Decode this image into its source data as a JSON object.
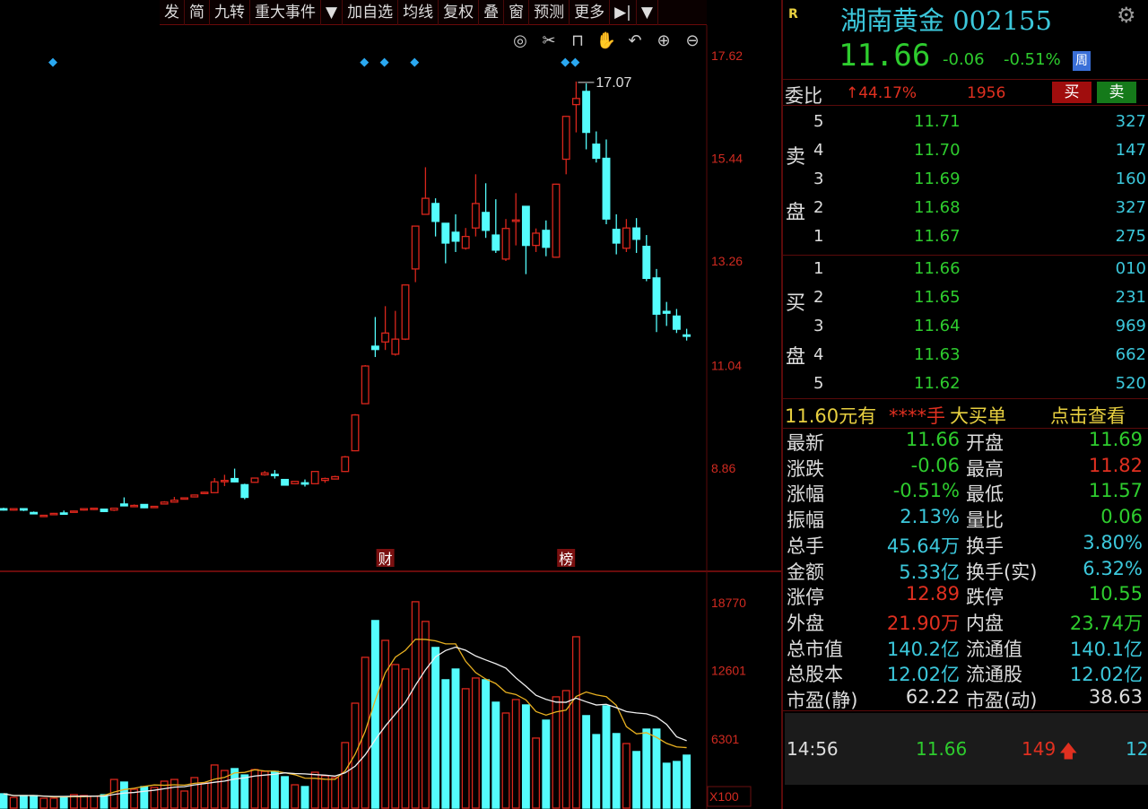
{
  "toolbar": {
    "items": [
      "发",
      "简",
      "九转",
      "重大事件",
      "▼",
      "加自选",
      "均线",
      "复权",
      "叠",
      "窗",
      "预测",
      "更多",
      "▶|",
      "▼"
    ]
  },
  "chart_icons": [
    "eye-icon",
    "scissors-icon",
    "lock-icon",
    "hand-icon",
    "undo-icon",
    "zoom-in-icon",
    "zoom-out-icon"
  ],
  "chart_data": [
    {
      "type": "candlestick",
      "title": "",
      "price_axis_ticks": [
        17.62,
        15.44,
        13.26,
        11.04,
        8.86
      ],
      "high_label": "17.07",
      "colors": {
        "up": "#d9261c",
        "down": "#54fcfc",
        "axis": "#d02a20"
      },
      "event_markers": [
        {
          "index": 5,
          "symbol": "◆"
        },
        {
          "index": 36,
          "symbol": "◆"
        },
        {
          "index": 38,
          "symbol": "◆"
        },
        {
          "index": 41,
          "symbol": "◆"
        },
        {
          "index": 56,
          "symbol": "◆"
        },
        {
          "index": 57,
          "symbol": "◆"
        }
      ],
      "bottom_tags": [
        {
          "index": 38,
          "text": "财"
        },
        {
          "index": 56,
          "text": "榜"
        }
      ],
      "ohlc": [
        [
          8.0,
          8.02,
          7.96,
          7.98
        ],
        [
          7.97,
          8.01,
          7.96,
          8.0
        ],
        [
          8.0,
          8.0,
          7.95,
          7.97
        ],
        [
          7.92,
          7.94,
          7.88,
          7.89
        ],
        [
          7.85,
          7.87,
          7.84,
          7.86
        ],
        [
          7.88,
          7.91,
          7.87,
          7.9
        ],
        [
          7.91,
          7.96,
          7.89,
          7.9
        ],
        [
          7.93,
          7.96,
          7.92,
          7.95
        ],
        [
          7.98,
          8.01,
          7.96,
          8.0
        ],
        [
          7.99,
          8.02,
          7.97,
          8.01
        ],
        [
          7.99,
          7.99,
          7.93,
          7.94
        ],
        [
          7.97,
          8.02,
          7.95,
          8.01
        ],
        [
          8.1,
          8.24,
          8.05,
          8.06
        ],
        [
          8.06,
          8.09,
          8.05,
          8.07
        ],
        [
          8.09,
          8.09,
          8.01,
          8.02
        ],
        [
          8.03,
          8.06,
          8.02,
          8.05
        ],
        [
          8.1,
          8.16,
          8.09,
          8.14
        ],
        [
          8.14,
          8.25,
          8.13,
          8.18
        ],
        [
          8.21,
          8.24,
          8.2,
          8.23
        ],
        [
          8.25,
          8.3,
          8.24,
          8.29
        ],
        [
          8.32,
          8.36,
          8.31,
          8.35
        ],
        [
          8.34,
          8.65,
          8.33,
          8.57
        ],
        [
          8.58,
          8.72,
          8.48,
          8.6
        ],
        [
          8.64,
          8.85,
          8.56,
          8.57
        ],
        [
          8.51,
          8.53,
          8.2,
          8.24
        ],
        [
          8.56,
          8.66,
          8.55,
          8.65
        ],
        [
          8.72,
          8.8,
          8.7,
          8.76
        ],
        [
          8.73,
          8.82,
          8.64,
          8.71
        ],
        [
          8.62,
          8.63,
          8.49,
          8.5
        ],
        [
          8.53,
          8.59,
          8.52,
          8.58
        ],
        [
          8.55,
          8.62,
          8.47,
          8.53
        ],
        [
          8.53,
          8.8,
          8.52,
          8.79
        ],
        [
          8.6,
          8.66,
          8.55,
          8.64
        ],
        [
          8.63,
          8.7,
          8.62,
          8.68
        ],
        [
          8.79,
          9.12,
          8.78,
          9.1
        ],
        [
          9.23,
          10.01,
          9.22,
          9.99
        ],
        [
          10.23,
          11.05,
          10.22,
          11.03
        ],
        [
          11.45,
          12.07,
          11.22,
          11.38
        ],
        [
          11.54,
          12.3,
          11.37,
          11.73
        ],
        [
          11.28,
          12.2,
          11.25,
          11.6
        ],
        [
          11.6,
          12.76,
          11.58,
          12.75
        ],
        [
          13.09,
          14.01,
          12.81,
          14.0
        ],
        [
          14.25,
          15.25,
          14.24,
          14.59
        ],
        [
          14.48,
          14.59,
          13.78,
          14.1
        ],
        [
          14.06,
          14.06,
          13.21,
          13.64
        ],
        [
          13.87,
          14.25,
          13.45,
          13.68
        ],
        [
          13.53,
          13.96,
          13.5,
          13.78
        ],
        [
          13.96,
          15.1,
          13.78,
          14.48
        ],
        [
          14.29,
          14.91,
          13.75,
          13.91
        ],
        [
          13.81,
          14.57,
          13.43,
          13.49
        ],
        [
          13.3,
          14.15,
          13.26,
          13.95
        ],
        [
          14.1,
          14.7,
          13.59,
          14.13
        ],
        [
          14.42,
          14.42,
          12.98,
          13.59
        ],
        [
          13.59,
          13.95,
          13.45,
          13.85
        ],
        [
          13.91,
          14.12,
          13.36,
          13.55
        ],
        [
          13.34,
          14.9,
          13.33,
          14.89
        ],
        [
          15.42,
          16.34,
          15.1,
          16.33
        ],
        [
          16.58,
          17.07,
          15.99,
          16.71
        ],
        [
          16.86,
          17.03,
          15.63,
          15.99
        ],
        [
          15.74,
          16.01,
          15.35,
          15.44
        ],
        [
          15.44,
          15.84,
          14.04,
          14.15
        ],
        [
          13.93,
          14.25,
          13.4,
          13.64
        ],
        [
          13.53,
          14.15,
          13.45,
          13.96
        ],
        [
          13.96,
          14.17,
          13.43,
          13.72
        ],
        [
          13.57,
          13.81,
          12.83,
          12.89
        ],
        [
          12.9,
          13.09,
          11.75,
          12.13
        ],
        [
          12.19,
          12.39,
          11.88,
          12.15
        ],
        [
          12.09,
          12.24,
          11.73,
          11.81
        ],
        [
          11.69,
          11.82,
          11.57,
          11.66
        ]
      ]
    },
    {
      "type": "bar",
      "title": "",
      "volume_axis_ticks": [
        18770,
        12601,
        6301
      ],
      "unit_label": "X100",
      "ma_colors": [
        "#e8b020",
        "#f0f0f0"
      ],
      "values": [
        1310,
        980,
        1150,
        1150,
        900,
        900,
        1060,
        1230,
        1150,
        1100,
        1230,
        2620,
        2380,
        1720,
        1970,
        1890,
        2460,
        2620,
        1560,
        2790,
        2300,
        3940,
        3440,
        3610,
        3030,
        3520,
        3360,
        3360,
        2870,
        2130,
        1970,
        3280,
        2950,
        2790,
        5990,
        9590,
        13780,
        17140,
        15330,
        13120,
        12710,
        18860,
        17060,
        14680,
        11730,
        12710,
        10910,
        11890,
        11730,
        9680,
        8690,
        9920,
        9430,
        6400,
        8040,
        10170,
        10740,
        15660,
        8450,
        6720,
        9350,
        6810,
        5900,
        5170,
        7220,
        7220,
        4100,
        4260,
        4840
      ]
    }
  ],
  "quote": {
    "flag": "R",
    "name_code": "湖南黄金 002155",
    "price": "11.66",
    "change": "-0.06",
    "change_pct": "-0.51%",
    "badge": "周",
    "settings_icon": "gear-icon",
    "wb_label": "委比",
    "wb_pct": "↑44.17%",
    "wb_diff": "1956",
    "buy_label": "买",
    "sell_label": "卖"
  },
  "orderbook": {
    "sell_side": [
      "卖",
      "盘"
    ],
    "buy_side": [
      "买",
      "盘"
    ],
    "sell": [
      {
        "level": "5",
        "price": "11.71",
        "qty": "327"
      },
      {
        "level": "4",
        "price": "11.70",
        "qty": "147"
      },
      {
        "level": "3",
        "price": "11.69",
        "qty": "160"
      },
      {
        "level": "2",
        "price": "11.68",
        "qty": "327"
      },
      {
        "level": "1",
        "price": "11.67",
        "qty": "275"
      }
    ],
    "buy": [
      {
        "level": "1",
        "price": "11.66",
        "qty": "010"
      },
      {
        "level": "2",
        "price": "11.65",
        "qty": "231"
      },
      {
        "level": "3",
        "price": "11.64",
        "qty": "969"
      },
      {
        "level": "4",
        "price": "11.63",
        "qty": "662"
      },
      {
        "level": "5",
        "price": "11.62",
        "qty": "520"
      }
    ]
  },
  "bigbuy": {
    "a": "11.60元有",
    "b": "****手",
    "c": "大买单",
    "d": "点击查看"
  },
  "stats": [
    {
      "l1": "最新",
      "v1": "11.66",
      "c1": "g",
      "l2": "开盘",
      "v2": "11.69",
      "c2": "g"
    },
    {
      "l1": "涨跌",
      "v1": "-0.06",
      "c1": "g",
      "l2": "最高",
      "v2": "11.82",
      "c2": "r"
    },
    {
      "l1": "涨幅",
      "v1": "-0.51%",
      "c1": "g",
      "l2": "最低",
      "v2": "11.57",
      "c2": "g"
    },
    {
      "l1": "振幅",
      "v1": "2.13%",
      "c1": "c",
      "l2": "量比",
      "v2": "0.06",
      "c2": "g"
    },
    {
      "l1": "总手",
      "v1": "45.64万",
      "c1": "c",
      "l2": "换手",
      "v2": "3.80%",
      "c2": "c"
    },
    {
      "l1": "金额",
      "v1": "5.33亿",
      "c1": "c",
      "l2": "换手(实)",
      "v2": "6.32%",
      "c2": "c"
    },
    {
      "l1": "涨停",
      "v1": "12.89",
      "c1": "r",
      "l2": "跌停",
      "v2": "10.55",
      "c2": "g"
    },
    {
      "l1": "外盘",
      "v1": "21.90万",
      "c1": "r",
      "l2": "内盘",
      "v2": "23.74万",
      "c2": "g"
    },
    {
      "l1": "总市值",
      "v1": "140.2亿",
      "c1": "c",
      "l2": "流通值",
      "v2": "140.1亿",
      "c2": "c"
    },
    {
      "l1": "总股本",
      "v1": "12.02亿",
      "c1": "c",
      "l2": "流通股",
      "v2": "12.02亿",
      "c2": "c"
    },
    {
      "l1": "市盈(静)",
      "v1": "62.22",
      "c1": "w",
      "l2": "市盈(动)",
      "v2": "38.63",
      "c2": "w"
    }
  ],
  "tick": {
    "time": "14:56",
    "price": "11.66",
    "vol": "149",
    "dir_icon": "arrow-up-icon",
    "count": "12"
  }
}
